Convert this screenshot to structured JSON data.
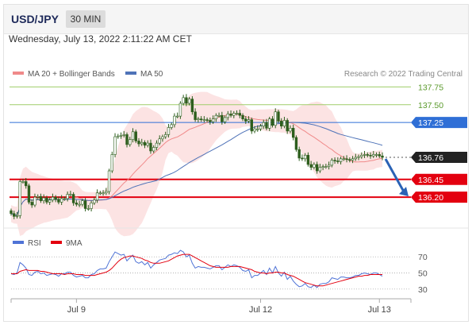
{
  "header": {
    "symbol": "USD/JPY",
    "timeframe": "30 MIN"
  },
  "datetime": "Wednesday, July 13, 2022 2:11:22 AM CET",
  "legend": {
    "ma20_label": "MA 20 + Bollinger Bands",
    "ma50_label": "MA 50",
    "credit": "Research © 2022 Trading Central",
    "rsi_label": "RSI",
    "rsi_ma_label": "9MA"
  },
  "colors": {
    "candle": "#2d5e1d",
    "bollinger_fill": "#fbdada",
    "ma20": "#f08a8a",
    "ma50": "#4f73b8",
    "resistance": "#9fce6a",
    "pivot": "#2f6fd6",
    "support": "#e3000f",
    "current": "#222222",
    "arrow": "#2a62b5",
    "rsi": "#4f73d6",
    "rsi_ma": "#e3000f"
  },
  "chart_data": [
    {
      "type": "candlestick",
      "x_ticks": [
        "Jul 9",
        "Jul 12",
        "Jul 13"
      ],
      "ylim": [
        135.6,
        138.1
      ],
      "levels": [
        {
          "label": "137.75",
          "value": 137.75,
          "kind": "resistance"
        },
        {
          "label": "137.50",
          "value": 137.5,
          "kind": "resistance"
        },
        {
          "label": "137.25",
          "value": 137.25,
          "kind": "pivot"
        },
        {
          "label": "136.76",
          "value": 136.76,
          "kind": "current"
        },
        {
          "label": "136.45",
          "value": 136.45,
          "kind": "support"
        },
        {
          "label": "136.20",
          "value": 136.2,
          "kind": "support"
        }
      ],
      "forecast": {
        "from": 136.76,
        "to": 136.2
      },
      "closes": [
        135.97,
        135.93,
        135.94,
        136.42,
        136.42,
        136.36,
        136.13,
        136.09,
        136.2,
        136.21,
        136.15,
        136.19,
        136.13,
        136.16,
        136.2,
        136.17,
        136.13,
        136.18,
        136.18,
        136.24,
        136.24,
        136.12,
        136.1,
        136.1,
        136.15,
        136.04,
        136.04,
        136.12,
        136.16,
        136.26,
        136.26,
        136.26,
        136.28,
        136.57,
        136.8,
        137.05,
        137.06,
        137.07,
        137.08,
        136.94,
        137.01,
        137.12,
        136.99,
        136.95,
        136.97,
        136.93,
        136.96,
        136.85,
        136.9,
        136.96,
        137.02,
        137.05,
        137.08,
        137.18,
        137.22,
        137.34,
        137.34,
        137.52,
        137.6,
        137.52,
        137.58,
        137.4,
        137.29,
        137.3,
        137.29,
        137.29,
        137.28,
        137.26,
        137.3,
        137.35,
        137.35,
        137.26,
        137.32,
        137.37,
        137.35,
        137.38,
        137.38,
        137.35,
        137.3,
        137.27,
        137.29,
        137.13,
        137.16,
        137.16,
        137.2,
        137.25,
        137.17,
        137.3,
        137.21,
        137.4,
        137.27,
        137.2,
        137.28,
        137.13,
        137.17,
        137.04,
        136.87,
        136.75,
        136.74,
        136.79,
        136.66,
        136.62,
        136.66,
        136.57,
        136.62,
        136.63,
        136.63,
        136.65,
        136.72,
        136.71,
        136.7,
        136.74,
        136.74,
        136.73,
        136.72,
        136.74,
        136.76,
        136.77,
        136.79,
        136.8,
        136.79,
        136.78,
        136.8,
        136.8,
        136.78,
        136.76
      ]
    },
    {
      "type": "line",
      "series": [
        {
          "name": "RSI"
        },
        {
          "name": "9MA"
        }
      ],
      "x_ticks": [
        "Jul 9",
        "Jul 12",
        "Jul 13"
      ],
      "y_ticks": [
        70,
        50,
        30
      ],
      "ylim": [
        20,
        80
      ],
      "rsi_values": [
        49,
        48,
        50,
        63,
        60,
        56,
        48,
        47,
        51,
        52,
        49,
        50,
        47,
        48,
        49,
        48,
        46,
        49,
        49,
        51,
        51,
        47,
        45,
        46,
        47,
        44,
        44,
        48,
        49,
        53,
        55,
        55,
        56,
        64,
        70,
        76,
        74,
        72,
        73,
        65,
        69,
        72,
        64,
        62,
        64,
        60,
        63,
        56,
        60,
        63,
        66,
        67,
        68,
        72,
        73,
        75,
        74,
        78,
        76,
        70,
        72,
        62,
        56,
        58,
        57,
        57,
        56,
        55,
        57,
        59,
        59,
        54,
        57,
        60,
        58,
        60,
        59,
        57,
        53,
        52,
        54,
        44,
        47,
        47,
        50,
        53,
        48,
        56,
        50,
        58,
        50,
        46,
        51,
        42,
        46,
        40,
        36,
        33,
        34,
        37,
        33,
        32,
        35,
        32,
        36,
        37,
        37,
        39,
        44,
        43,
        42,
        45,
        45,
        44,
        44,
        45,
        47,
        47,
        49,
        50,
        49,
        48,
        50,
        50,
        48,
        46
      ],
      "ma_values": [
        49,
        49,
        49,
        52,
        53,
        54,
        53,
        53,
        53,
        53,
        52,
        52,
        51,
        50,
        49,
        49,
        49,
        49,
        48,
        49,
        49,
        49,
        48,
        48,
        48,
        47,
        47,
        47,
        47,
        48,
        49,
        50,
        51,
        53,
        56,
        60,
        64,
        67,
        69,
        70,
        71,
        71,
        70,
        69,
        68,
        66,
        65,
        63,
        62,
        62,
        62,
        63,
        64,
        65,
        67,
        69,
        71,
        72,
        73,
        73,
        73,
        71,
        69,
        67,
        65,
        63,
        61,
        59,
        58,
        57,
        57,
        57,
        57,
        57,
        58,
        58,
        58,
        58,
        57,
        56,
        55,
        54,
        52,
        51,
        50,
        50,
        49,
        50,
        50,
        51,
        51,
        50,
        50,
        48,
        47,
        46,
        44,
        42,
        40,
        38,
        37,
        36,
        35,
        34,
        34,
        34,
        35,
        36,
        37,
        38,
        39,
        40,
        41,
        42,
        43,
        44,
        45,
        46,
        46,
        47,
        47,
        48,
        48,
        48,
        48,
        48
      ]
    }
  ]
}
